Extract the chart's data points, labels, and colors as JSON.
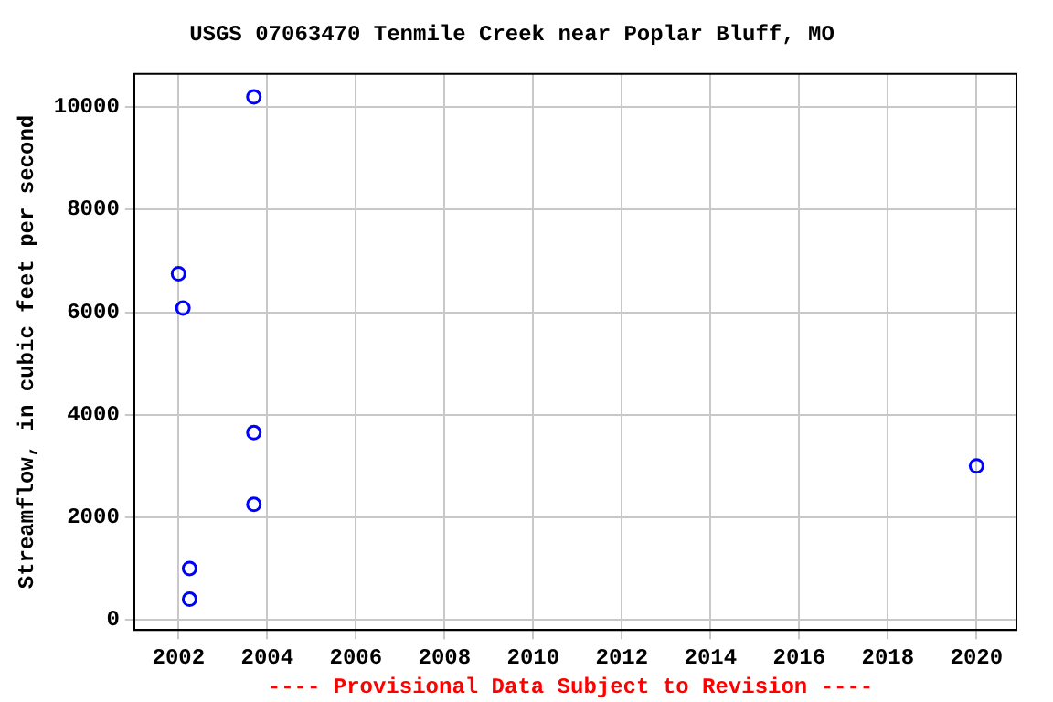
{
  "chart_data": {
    "type": "scatter",
    "title": "USGS 07063470 Tenmile Creek near Poplar Bluff, MO",
    "ylabel": "Streamflow, in cubic feet per second",
    "x": [
      2002.0,
      2002.1,
      2003.7,
      2002.25,
      2002.25,
      2003.7,
      2003.7,
      2020.0
    ],
    "series": [
      {
        "color": "#0000ff",
        "values": [
          6750,
          6080,
          10200,
          1000,
          400,
          3650,
          2250,
          3000
        ]
      }
    ],
    "xlim": [
      2001,
      2020.9
    ],
    "xticks": [
      2002,
      2004,
      2006,
      2008,
      2010,
      2012,
      2014,
      2016,
      2018,
      2020
    ],
    "ylim": [
      -200,
      10650
    ],
    "yticks": [
      0,
      2000,
      4000,
      6000,
      8000,
      10000
    ],
    "grid": true,
    "legend": false,
    "marker": "circle",
    "annotations": [
      "---- Provisional Data Subject to Revision ----"
    ]
  }
}
